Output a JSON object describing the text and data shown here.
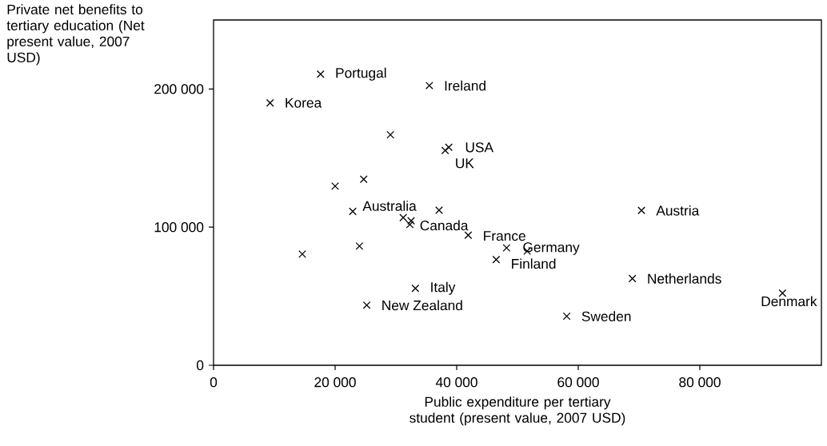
{
  "chart_data": {
    "type": "scatter",
    "xlabel": "Public expenditure per tertiary student (present value, 2007 USD)",
    "ylabel": "Private net benefits to tertiary education (Net present value, 2007 USD)",
    "xlim": [
      0,
      100000
    ],
    "ylim": [
      0,
      250000
    ],
    "xticks": [
      0,
      {
        "value": 20000,
        "label": "20 000"
      },
      {
        "value": 40000,
        "label": "40 000"
      },
      {
        "value": 60000,
        "label": "60 000"
      },
      {
        "value": 80000,
        "label": "80 000"
      }
    ],
    "yticks": [
      0,
      {
        "value": 100000,
        "label": "100 000"
      },
      {
        "value": 200000,
        "label": "200 000"
      }
    ],
    "marker": "cross",
    "grid": false,
    "series": [
      {
        "color": "#000000",
        "x": [
          17600,
          35500,
          9300,
          29100,
          38700,
          38100,
          24700,
          20000,
          22900,
          37100,
          31200,
          32500,
          32300,
          41900,
          48200,
          51600,
          46500,
          24000,
          14600,
          33200,
          25200,
          58100,
          70400,
          68900,
          93600
        ],
        "values": [
          210800,
          202500,
          190000,
          166900,
          157800,
          155500,
          134700,
          129700,
          111400,
          112300,
          106900,
          104600,
          101900,
          94200,
          85000,
          82700,
          76500,
          86300,
          80500,
          55700,
          43500,
          35500,
          112100,
          62800,
          52200
        ]
      }
    ],
    "annotations": [
      {
        "text": "Portugal",
        "x": 17600,
        "y": 210800
      },
      {
        "text": "Ireland",
        "x": 35500,
        "y": 202500
      },
      {
        "text": "Korea",
        "x": 9300,
        "y": 190000
      },
      {
        "text": "USA",
        "x": 38700,
        "y": 157800
      },
      {
        "text": "UK",
        "x": 38100,
        "y": 155500
      },
      {
        "text": "Australia",
        "x": 22900,
        "y": 111400
      },
      {
        "text": "Canada",
        "x": 32300,
        "y": 101900
      },
      {
        "text": "France",
        "x": 41900,
        "y": 94200
      },
      {
        "text": "Germany",
        "x": 51600,
        "y": 82700
      },
      {
        "text": "Finland",
        "x": 46500,
        "y": 76500
      },
      {
        "text": "Italy",
        "x": 33200,
        "y": 55700
      },
      {
        "text": "New Zealand",
        "x": 25200,
        "y": 43500
      },
      {
        "text": "Austria",
        "x": 70400,
        "y": 112100
      },
      {
        "text": "Netherlands",
        "x": 68900,
        "y": 62800
      },
      {
        "text": "Sweden",
        "x": 58100,
        "y": 35500
      },
      {
        "text": "Denmark",
        "x": 93600,
        "y": 52200
      }
    ]
  }
}
